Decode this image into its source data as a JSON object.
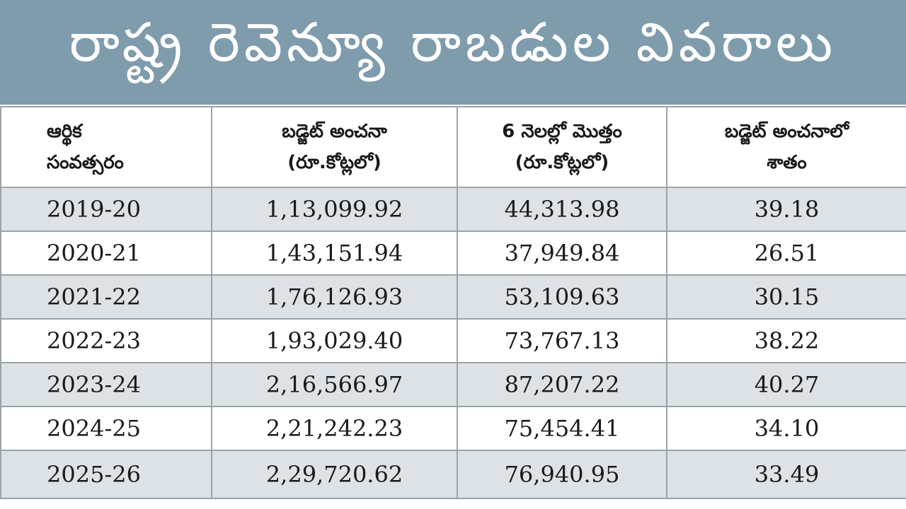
{
  "title": "రాష్ట్ర రెవెన్యూ రాబడుల వివరాలు",
  "headers": [
    {
      "line1": "ఆర్థిక",
      "line2": "సంవత్సరం"
    },
    {
      "line1": "బడ్జెట్ అంచనా",
      "line2": "(రూ.కోట్లలో)"
    },
    {
      "line1": "6 నెలల్లో మొత్తం",
      "line2": "(రూ.కోట్లలో)"
    },
    {
      "line1": "బడ్జెట్ అంచనాలో",
      "line2": "శాతం"
    }
  ],
  "rows": [
    {
      "year": "2019-20",
      "budget": "1,13,099.92",
      "six_months": "44,313.98",
      "percent": "39.18"
    },
    {
      "year": "2020-21",
      "budget": "1,43,151.94",
      "six_months": "37,949.84",
      "percent": "26.51"
    },
    {
      "year": "2021-22",
      "budget": "1,76,126.93",
      "six_months": "53,109.63",
      "percent": "30.15"
    },
    {
      "year": "2022-23",
      "budget": "1,93,029.40",
      "six_months": "73,767.13",
      "percent": "38.22"
    },
    {
      "year": "2023-24",
      "budget": "2,16,566.97",
      "six_months": "87,207.22",
      "percent": "40.27"
    },
    {
      "year": "2024-25",
      "budget": "2,21,242.23",
      "six_months": "75,454.41",
      "percent": "34.10"
    },
    {
      "year": "2025-26",
      "budget": "2,29,720.62",
      "six_months": "76,940.95",
      "percent": "33.49"
    }
  ],
  "colors": {
    "title_background": "#7f9cad",
    "title_text": "#ffffff",
    "row_shade": "#dde2e6",
    "grid_line": "#9aa4a9"
  }
}
